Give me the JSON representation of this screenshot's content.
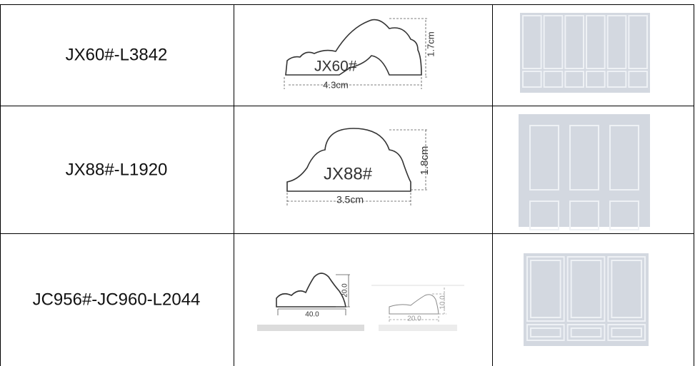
{
  "table": {
    "rows": [
      {
        "code": "JX60#-L3842",
        "profiles": [
          {
            "name": "JX60#",
            "width": "4.3cm",
            "height": "1.7cm"
          }
        ]
      },
      {
        "code": "JX88#-L1920",
        "profiles": [
          {
            "name": "JX88#",
            "width": "3.5cm",
            "height": "1.8cm"
          }
        ]
      },
      {
        "code": "JC956#-JC960-L2044",
        "profiles": [
          {
            "width": "40.0",
            "height": "20.0"
          },
          {
            "width": "20.0",
            "height": "10.0"
          }
        ]
      }
    ]
  }
}
